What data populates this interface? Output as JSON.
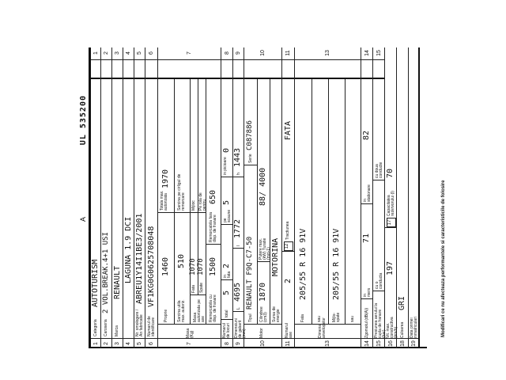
{
  "header": {
    "serial": "UL 535200",
    "mark": "A"
  },
  "rows": {
    "r1": {
      "n": "1",
      "label": "Categoria",
      "value": "AUTOTURISM"
    },
    "r2": {
      "n": "2",
      "label": "Caroseria",
      "value": "2 VOL.BREAK.4+1 USI"
    },
    "r3": {
      "n": "3",
      "label": "Marca",
      "value": "RENAULT"
    },
    "r4": {
      "n": "4",
      "label": "",
      "value": "LAGUNA 1.9 DCI"
    },
    "r5": {
      "n": "5",
      "label": "Nr. omologare / An fabricatie",
      "value": "ABREU1Y14I1BE3/2001"
    },
    "r6": {
      "n": "6",
      "label": "Numarul de identificare",
      "value": "VF1KG0G0625708048"
    },
    "r7": {
      "n": "7",
      "label": "Masa (Kg)",
      "proprie_label": "Proprie",
      "proprie": "1460",
      "totala_label": "Totala max. autorizata",
      "totala": "1970",
      "sarcina_label": "Sarcina utila max. autoriz.",
      "sarcina": "510",
      "cirlig_label": "Sarcina pe cirligul de remorcare",
      "axe_label": "Masa autorizata pe axe",
      "fata_label": "Fata",
      "fata": "1070",
      "mijloc_label": "Mijloc",
      "spate_label": "Spate",
      "spate": "1070",
      "rola_label": "Pe rola de pentru",
      "rem_cu_label": "Remorcabila cu disp. de franare",
      "rem_cu": "1500",
      "rem_fara_label": "Remorcabila fara disp. de franare",
      "rem_fara": "650"
    },
    "r8": {
      "n": "8",
      "label": "Numarul de locuri",
      "total_label": "total",
      "total": "5",
      "fata_label": "in fata",
      "fata": "2",
      "scaune_label": "pe scaune",
      "scaune": "5",
      "picioare_label": "in picioare",
      "picioare": "0"
    },
    "r9": {
      "n": "9",
      "label": "Dimensiuni de gabarit (mm)",
      "L_label": "L",
      "L": "4695",
      "l_label": "l",
      "l": "1772",
      "h_label": "h",
      "h": "1443"
    },
    "r10": {
      "n": "10",
      "label": "Motor",
      "tip_label": "Tipul",
      "tip": "RENAULT F9Q-C7-50",
      "serie_label": "Serie",
      "serie": "C087886",
      "cil_label": "Cilindree (cm3)",
      "cil": "1870",
      "putere_label": "Putere max. (kW) Turatie (min-1)",
      "putere": "88/ 4000",
      "sursa_label": "Sursa de energie",
      "sursa": "MOTORINA"
    },
    "r11": {
      "n": "11",
      "label": "Numarul axe",
      "value": "2",
      "n12": "12",
      "tract_label": "Tractiunea",
      "tract": "FATA"
    },
    "r13": {
      "n": "13",
      "label": "Dimens. anvelopelor",
      "fata_label": "Fata",
      "fata": "205/55 R 16 91V",
      "sau1": "sau",
      "mij_label": "Mijlo- spate",
      "mij": "205/55 R 16 91V",
      "sau2": "sau"
    },
    "r14": {
      "n": "14",
      "label": "Zgomotul (dB(A))",
      "mers_label": "in mers",
      "mers": "71",
      "stat_label": "in stationare",
      "stat": "82"
    },
    "r15": {
      "n": "15",
      "label": "Presiunea aerului la cupla de franare (bar)",
      "o_label": "cu o conducta",
      "doua_label": "cu doua conducte"
    },
    "r16": {
      "n": "16",
      "label": "Vit. max. constructiva (km/h)",
      "value": "197",
      "n17": "17",
      "cap_label": "Capacitatea rezervorului (l)",
      "cap": "70"
    },
    "r18": {
      "n": "18",
      "label": "Culoarea",
      "value": "GRI"
    },
    "r19": {
      "n": "19",
      "label": "Data primei inmatriculari"
    }
  },
  "footer": "Modificari ce nu afecteaza performantele si caracteristicile de folosire"
}
